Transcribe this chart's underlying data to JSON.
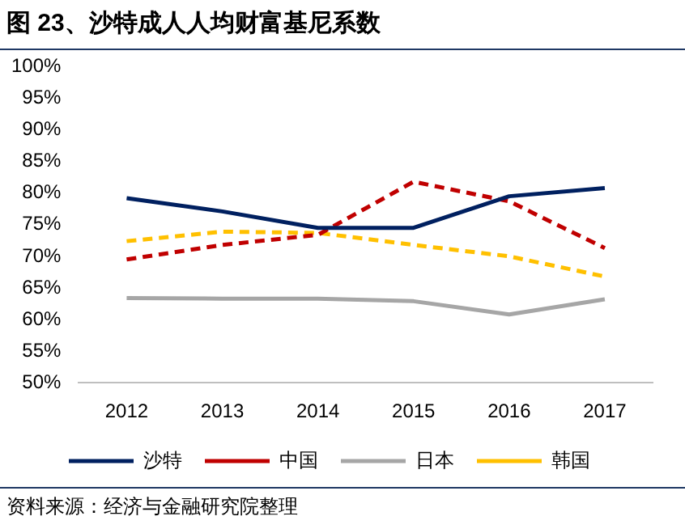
{
  "chart_data": {
    "type": "line",
    "title": "图 23、沙特成人人均财富基尼系数",
    "annotations": [
      "资料来源：经济与金融研究院整理"
    ],
    "categories": [
      "2012",
      "2013",
      "2014",
      "2015",
      "2016",
      "2017"
    ],
    "series": [
      {
        "name": "沙特",
        "color": "#002060",
        "line_style": "solid",
        "values": [
          79.2,
          77.1,
          74.5,
          74.5,
          79.5,
          80.8
        ]
      },
      {
        "name": "中国",
        "color": "#c00000",
        "line_style": "dashed",
        "values": [
          69.5,
          71.8,
          73.4,
          81.8,
          78.7,
          71.3
        ]
      },
      {
        "name": "日本",
        "color": "#a6a6a6",
        "line_style": "solid",
        "values": [
          63.4,
          63.3,
          63.3,
          62.9,
          60.8,
          63.2
        ]
      },
      {
        "name": "韩国",
        "color": "#ffc000",
        "line_style": "dashed",
        "values": [
          72.4,
          73.9,
          73.7,
          71.8,
          70,
          66.8
        ]
      }
    ],
    "ylim": [
      50,
      100
    ],
    "yticks": [
      {
        "value": 50,
        "label": "50%"
      },
      {
        "value": 55,
        "label": "55%"
      },
      {
        "value": 60,
        "label": "60%"
      },
      {
        "value": 65,
        "label": "65%"
      },
      {
        "value": 70,
        "label": "70%"
      },
      {
        "value": 75,
        "label": "75%"
      },
      {
        "value": 80,
        "label": "80%"
      },
      {
        "value": 85,
        "label": "85%"
      },
      {
        "value": 90,
        "label": "90%"
      },
      {
        "value": 95,
        "label": "95%"
      },
      {
        "value": 100,
        "label": "100%"
      }
    ],
    "grid": false,
    "legend": "bottom",
    "marker": "none"
  }
}
